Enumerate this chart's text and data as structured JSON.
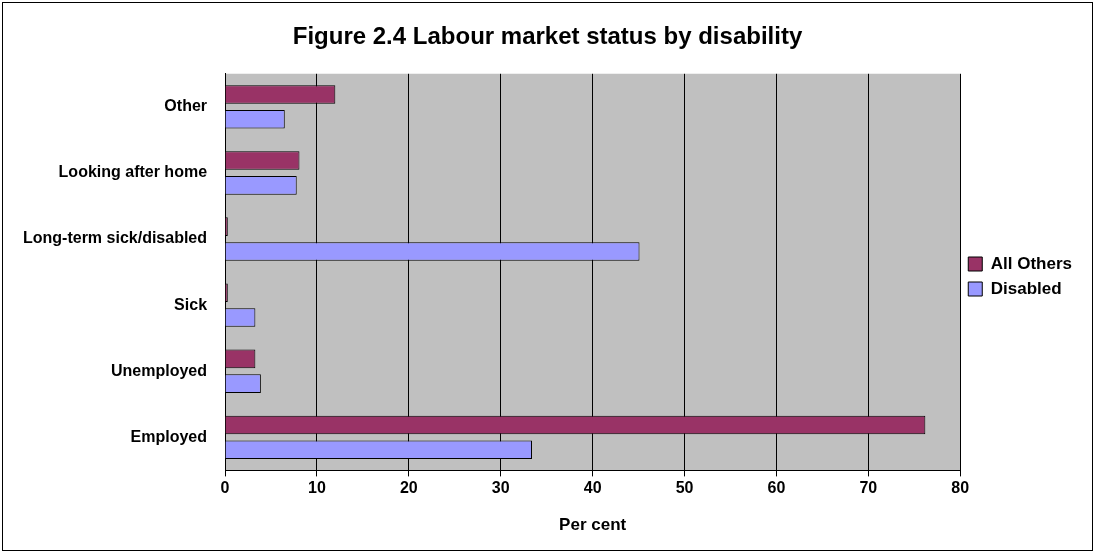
{
  "chart_data": {
    "type": "bar",
    "orientation": "horizontal",
    "title": "Figure 2.4 Labour market status by disability",
    "xlabel": "Per cent",
    "categories": [
      "Other",
      "Looking after home",
      "Long-term sick/disabled",
      "Sick",
      "Unemployed",
      "Employed"
    ],
    "series": [
      {
        "name": "All Others",
        "color": "#993366",
        "values": [
          12.0,
          8.1,
          0.3,
          0.3,
          3.3,
          76.2
        ]
      },
      {
        "name": "Disabled",
        "color": "#9999ff",
        "values": [
          6.5,
          7.8,
          45.1,
          3.3,
          3.9,
          33.4
        ]
      }
    ],
    "xlim": [
      0,
      80
    ],
    "xticks": [
      0,
      10,
      20,
      30,
      40,
      50,
      60,
      70,
      80
    ],
    "grid": "x",
    "legend": "right"
  }
}
